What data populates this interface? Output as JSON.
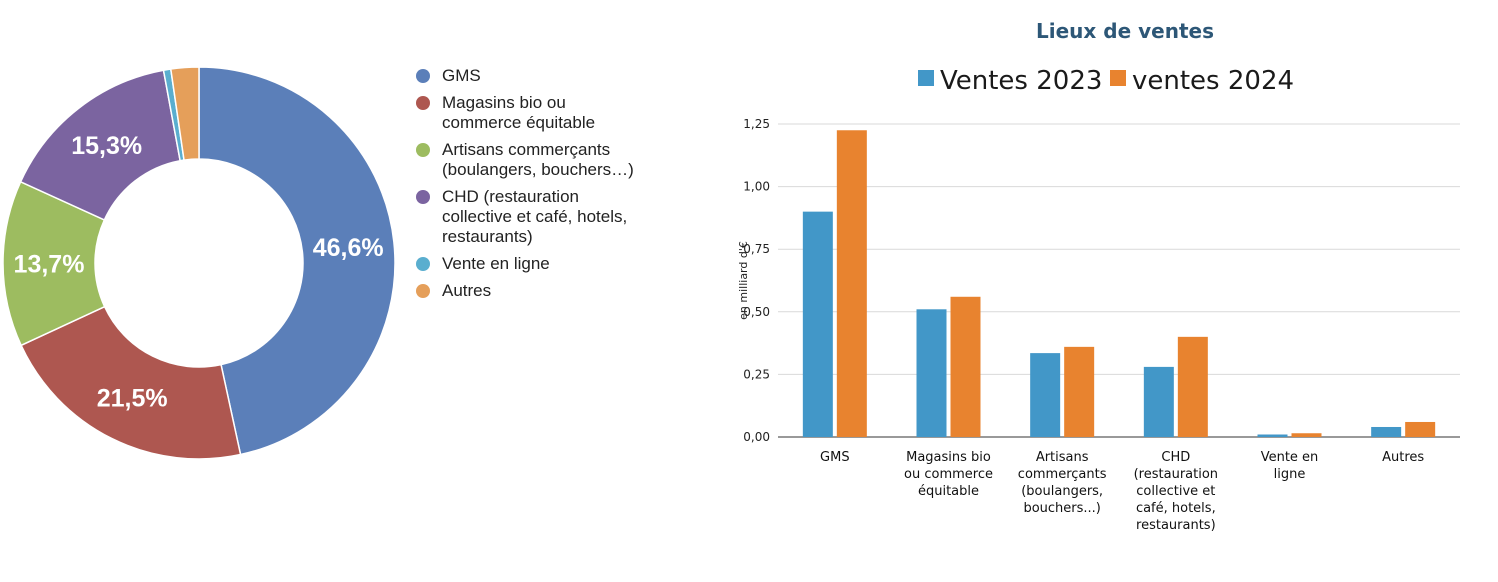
{
  "chart_data": [
    {
      "type": "pie",
      "title": "",
      "categories": [
        "GMS",
        "Magasins bio ou\ncommerce équitable",
        "Artisans commerçants\n(boulangers, bouchers…)",
        "CHD (restauration\ncollective et café, hotels,\nrestaurants)",
        "Vente en ligne",
        "Autres"
      ],
      "values": [
        46.6,
        21.5,
        13.7,
        15.3,
        0.6,
        2.3
      ],
      "labels": [
        "46,6%",
        "21,5%",
        "13,7%",
        "15,3%",
        "",
        ""
      ],
      "colors": [
        "#5b7fb9",
        "#ae5750",
        "#9dbc60",
        "#7b64a0",
        "#5aaecf",
        "#e59f5a"
      ],
      "legend_position": "right"
    },
    {
      "type": "bar",
      "title": "Lieux de ventes",
      "categories": [
        "GMS",
        "Magasins bio\nou commerce\néquitable",
        "Artisans\ncommerçants\n(boulangers,\nbouchers...)",
        "CHD\n(restauration\ncollective et\ncafé, hotels,\nrestaurants)",
        "Vente en\nligne",
        "Autres"
      ],
      "series": [
        {
          "name": "Ventes 2023",
          "color": "#4297c8",
          "values": [
            0.9,
            0.51,
            0.335,
            0.28,
            0.01,
            0.04
          ]
        },
        {
          "name": "ventes 2024",
          "color": "#e8832f",
          "values": [
            1.225,
            0.56,
            0.36,
            0.4,
            0.015,
            0.06
          ]
        }
      ],
      "xlabel": "",
      "ylabel": "en milliard d'€",
      "ylim": [
        0,
        1.25
      ],
      "yticks": [
        0,
        0.25,
        0.5,
        0.75,
        1.0,
        1.25
      ],
      "ytick_labels": [
        "0,00",
        "0,25",
        "0,50",
        "0,75",
        "1,00",
        "1,25"
      ],
      "grid": true,
      "legend_position": "top"
    }
  ]
}
